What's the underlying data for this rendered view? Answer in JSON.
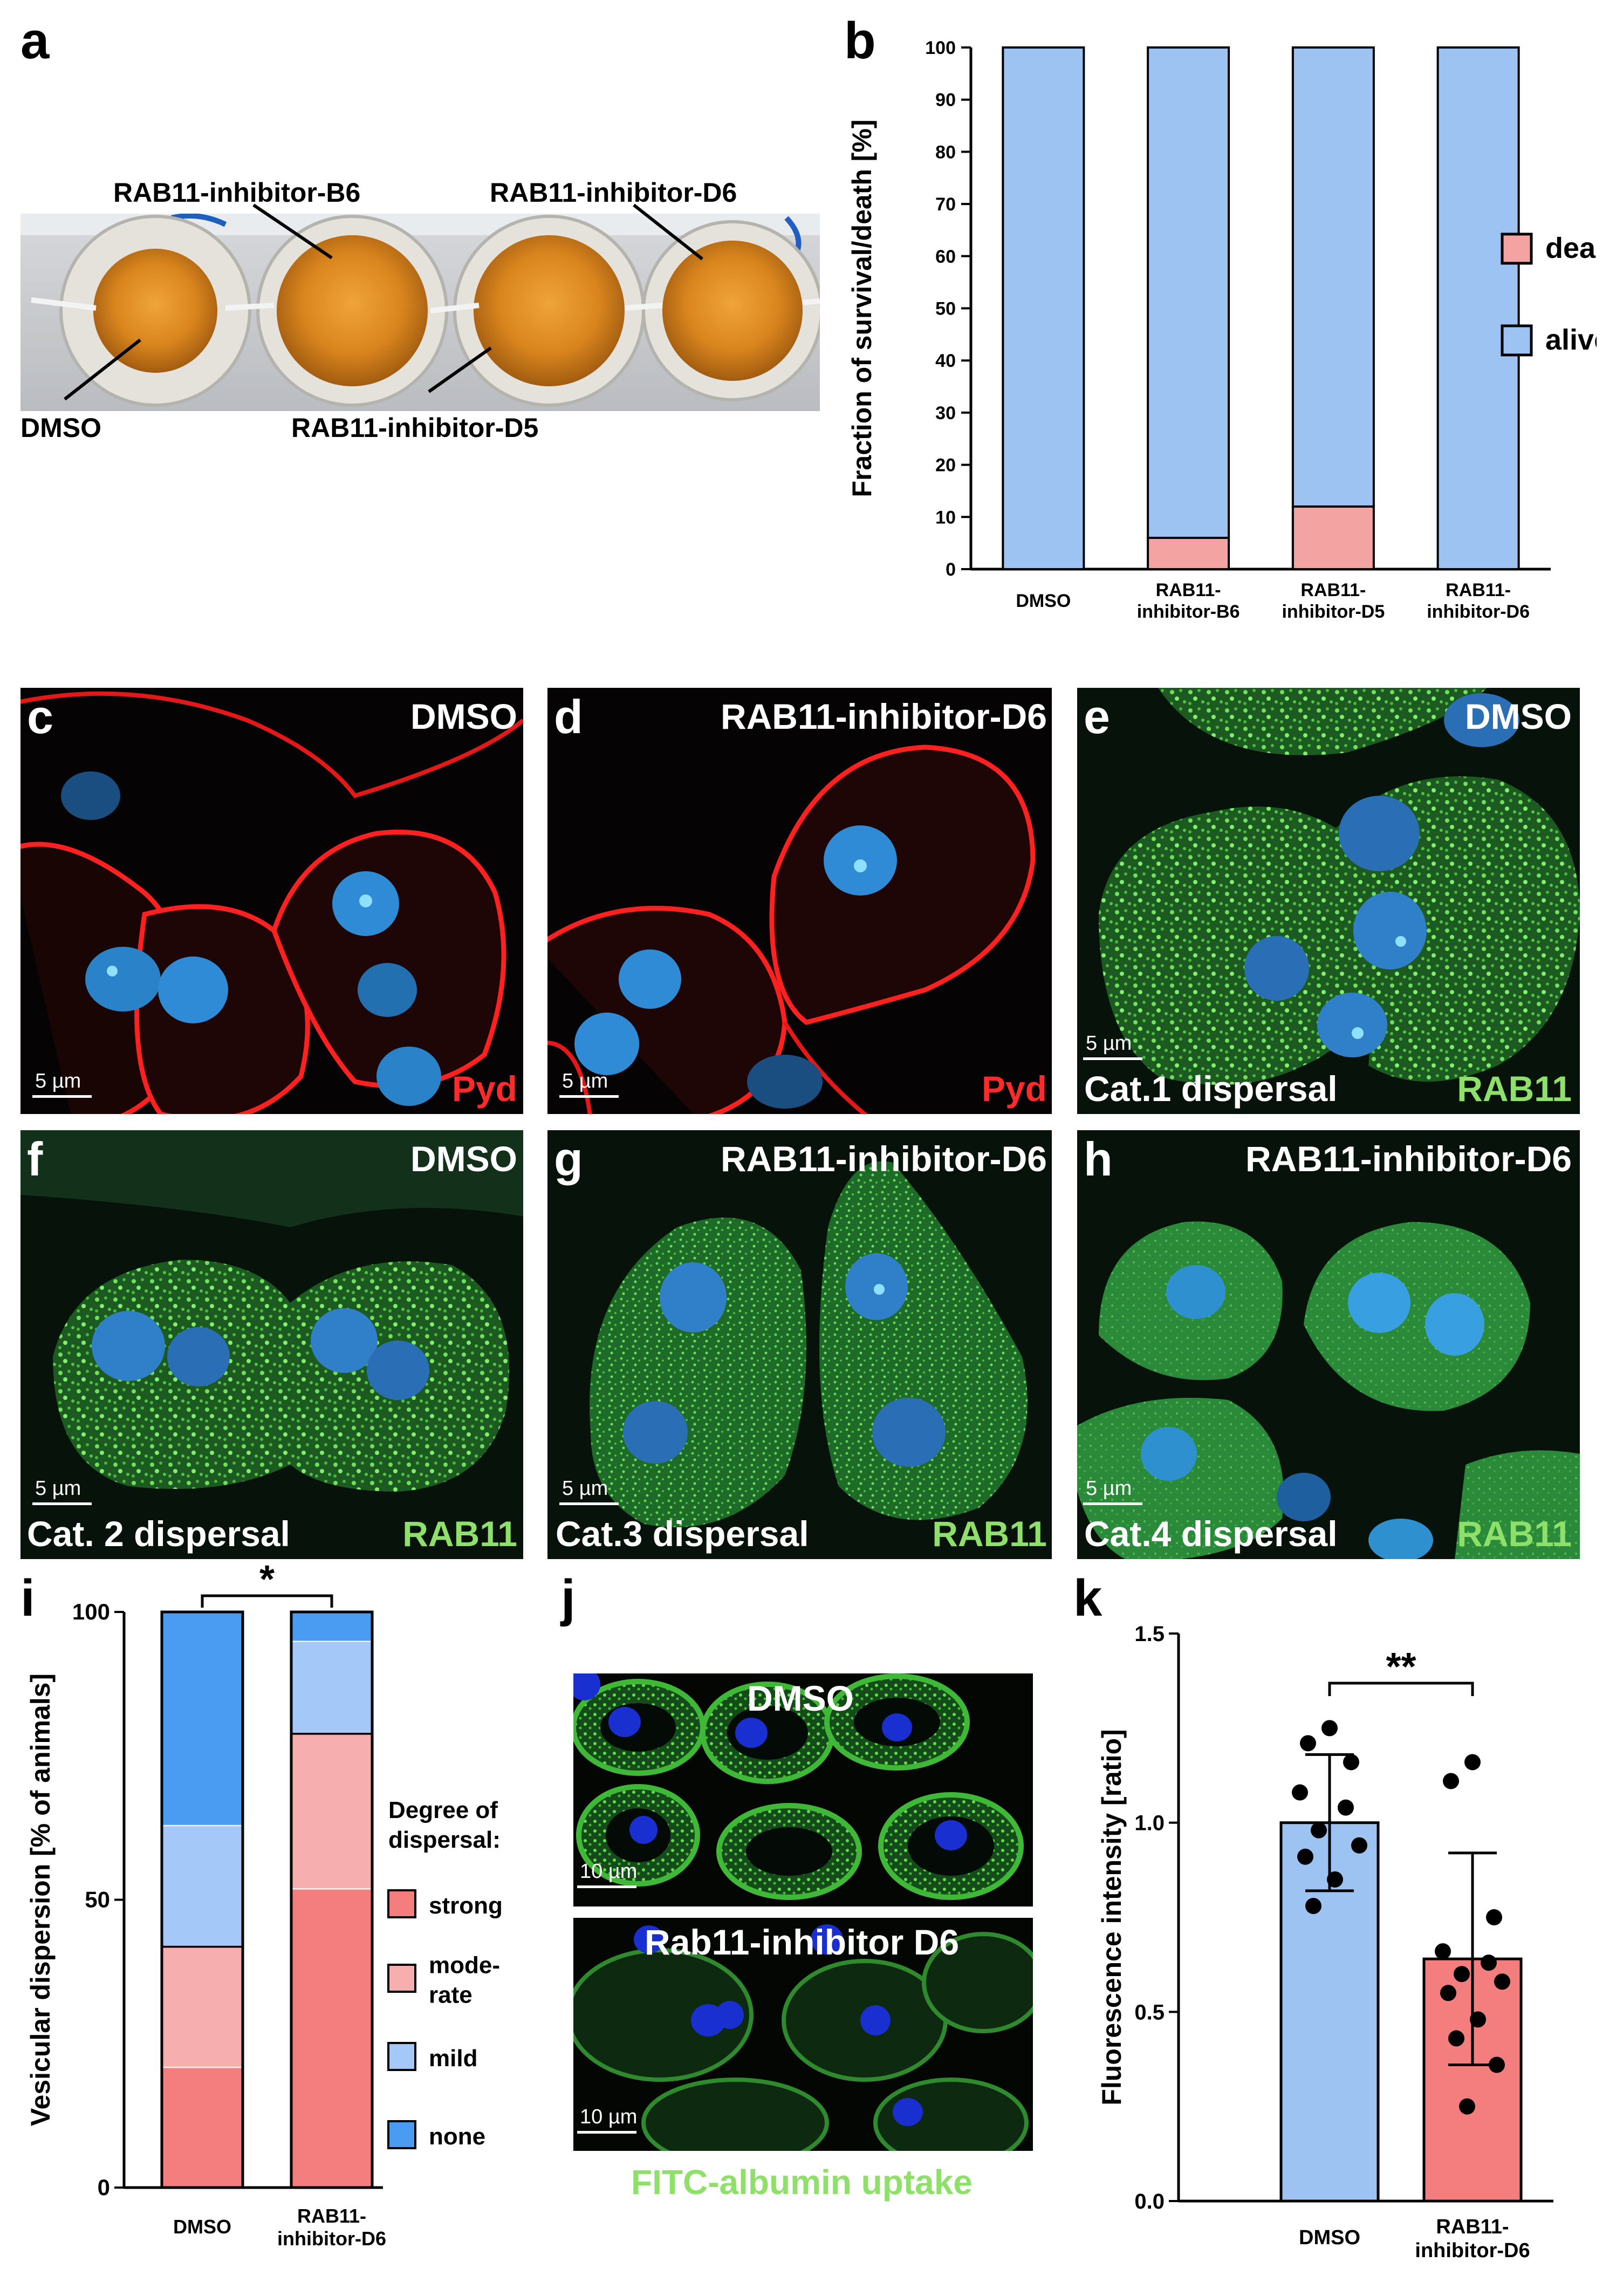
{
  "panels": {
    "a": {
      "letter": "a",
      "labels": {
        "b6": "RAB11-inhibitor-B6",
        "d6": "RAB11-inhibitor-D6",
        "dmso": "DMSO",
        "d5": "RAB11-inhibitor-D5"
      }
    },
    "b": {
      "letter": "b"
    },
    "c": {
      "letter": "c",
      "condition": "DMSO",
      "stain": "Pyd",
      "scale": "5 µm"
    },
    "d": {
      "letter": "d",
      "condition": "RAB11-inhibitor-D6",
      "stain": "Pyd",
      "scale": "5 µm"
    },
    "e": {
      "letter": "e",
      "condition": "DMSO",
      "category": "Cat.1 dispersal",
      "stain": "RAB11",
      "scale": "5 µm"
    },
    "f": {
      "letter": "f",
      "condition": "DMSO",
      "category": "Cat. 2 dispersal",
      "stain": "RAB11",
      "scale": "5 µm"
    },
    "g": {
      "letter": "g",
      "condition": "RAB11-inhibitor-D6",
      "category": "Cat.3 dispersal",
      "stain": "RAB11",
      "scale": "5 µm"
    },
    "h": {
      "letter": "h",
      "condition": "RAB11-inhibitor-D6",
      "category": "Cat.4 dispersal",
      "stain": "RAB11",
      "scale": "5 µm"
    },
    "i": {
      "letter": "i",
      "significance": "*"
    },
    "j": {
      "letter": "j",
      "top_label": "DMSO",
      "bottom_label": "Rab11-inhibitor D6",
      "scale": "10 µm",
      "caption": "FITC-albumin uptake"
    },
    "k": {
      "letter": "k",
      "significance": "**"
    }
  },
  "chart_data": [
    {
      "panel": "b",
      "type": "bar",
      "stacked": true,
      "ylabel": "Fraction of survival/death [%]",
      "ylim": [
        0,
        100
      ],
      "yticks": [
        "0",
        "10",
        "20",
        "30",
        "40",
        "50",
        "60",
        "70",
        "80",
        "90",
        "100"
      ],
      "categories": [
        "DMSO",
        "RAB11-\ninhibitor-B6",
        "RAB11-\ninhibitor-D5",
        "RAB11-\ninhibitor-D6"
      ],
      "category_lines": [
        [
          "DMSO"
        ],
        [
          "RAB11-",
          "inhibitor-B6"
        ],
        [
          "RAB11-",
          "inhibitor-D5"
        ],
        [
          "RAB11-",
          "inhibitor-D6"
        ]
      ],
      "series": [
        {
          "name": "dead",
          "color": "#f4a3a3",
          "values": [
            0,
            6,
            12,
            0
          ]
        },
        {
          "name": "alive",
          "color": "#9cc3f2",
          "values": [
            100,
            94,
            88,
            100
          ]
        }
      ],
      "legend": [
        "dead",
        "alive"
      ],
      "legend_position": "right"
    },
    {
      "panel": "i",
      "type": "bar",
      "stacked": true,
      "ylabel": "Vesicular dispersion [% of animals]",
      "ylim": [
        0,
        100
      ],
      "yticks": [
        "0",
        "50",
        "100"
      ],
      "categories": [
        "DMSO",
        "RAB11-\ninhibitor-D6"
      ],
      "category_lines": [
        [
          "DMSO"
        ],
        [
          "RAB11-",
          "inhibitor-D6"
        ]
      ],
      "legend_title": [
        "Degree of",
        "dispersal:"
      ],
      "series": [
        {
          "name": "strong",
          "color": "#f47e7e",
          "values": [
            21,
            52
          ]
        },
        {
          "name": "moderate",
          "legend_lines": [
            "mode-",
            "rate"
          ],
          "color": "#f7aeae",
          "values": [
            21,
            27
          ]
        },
        {
          "name": "mild",
          "color": "#a4c8f7",
          "values": [
            21,
            16
          ]
        },
        {
          "name": "none",
          "color": "#4a9cf2",
          "values": [
            37,
            5
          ]
        }
      ],
      "legend_position": "right"
    },
    {
      "panel": "k",
      "type": "bar",
      "ylabel": "Fluorescence intensity [ratio]",
      "ylim": [
        0,
        1.5
      ],
      "yticks": [
        "0.0",
        "0.5",
        "1.0",
        "1.5"
      ],
      "categories": [
        "DMSO",
        "RAB11-\ninhibitor-D6"
      ],
      "category_lines": [
        [
          "DMSO"
        ],
        [
          "RAB11-",
          "inhibitor-D6"
        ]
      ],
      "values": [
        1.0,
        0.64
      ],
      "error_sd": [
        0.18,
        0.28
      ],
      "colors": [
        "#9cc3f2",
        "#f47e7e"
      ],
      "points": [
        [
          1.25,
          1.21,
          1.16,
          1.08,
          1.04,
          0.98,
          0.94,
          0.91,
          0.85,
          0.78
        ],
        [
          1.16,
          1.11,
          0.75,
          0.66,
          0.63,
          0.6,
          0.58,
          0.55,
          0.48,
          0.43,
          0.36,
          0.25
        ]
      ]
    }
  ]
}
